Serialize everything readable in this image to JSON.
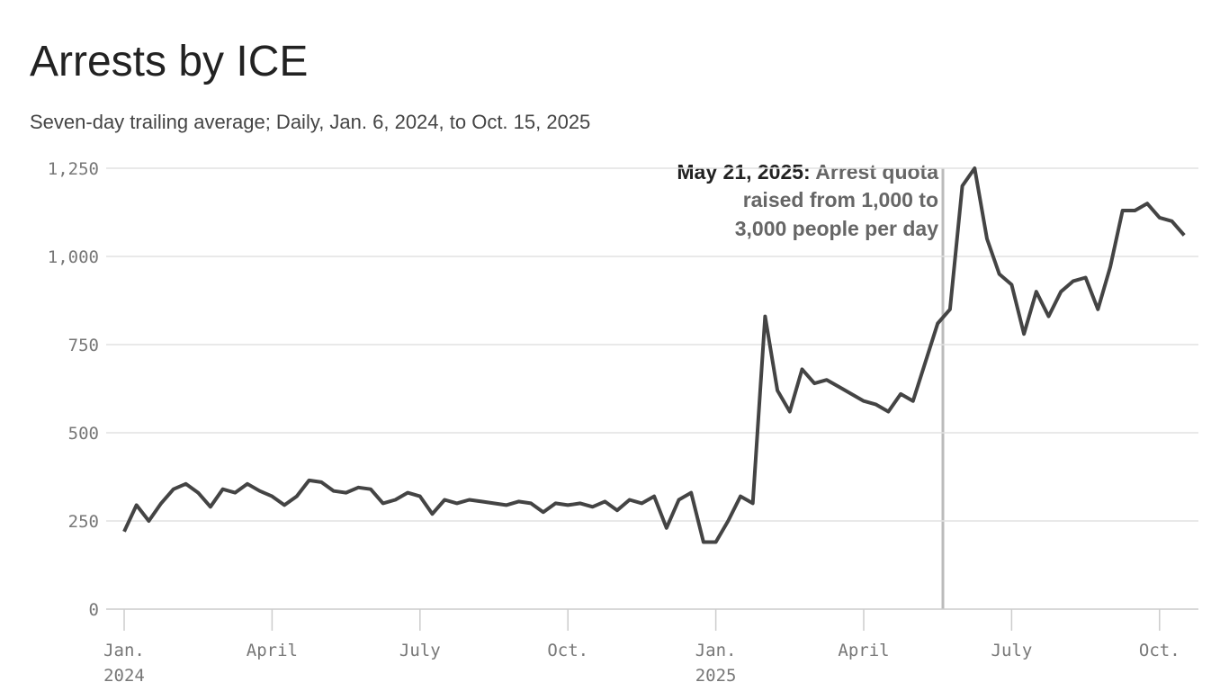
{
  "chart_data": {
    "type": "line",
    "title": "Arrests by ICE",
    "subtitle": "Seven-day trailing average; Daily, Jan. 6, 2024, to Oct. 15, 2025",
    "annotation": {
      "date": "May 21, 2025:",
      "lines": [
        "Arrest quota",
        "raised from 1,000 to",
        "3,000 people per day"
      ]
    },
    "categories": [
      "Jan.\n2024",
      null,
      null,
      null,
      null,
      null,
      null,
      null,
      null,
      null,
      null,
      null,
      "April",
      null,
      null,
      null,
      null,
      null,
      null,
      null,
      null,
      null,
      null,
      null,
      "July",
      null,
      null,
      null,
      null,
      null,
      null,
      null,
      null,
      null,
      null,
      null,
      "Oct.",
      null,
      null,
      null,
      null,
      null,
      null,
      null,
      null,
      null,
      null,
      null,
      "Jan.\n2025",
      null,
      null,
      null,
      null,
      null,
      null,
      null,
      null,
      null,
      null,
      null,
      "April",
      null,
      null,
      null,
      null,
      null,
      null,
      null,
      null,
      null,
      null,
      null,
      "July",
      null,
      null,
      null,
      null,
      null,
      null,
      null,
      null,
      null,
      null,
      null,
      "Oct.",
      null,
      null
    ],
    "series": [
      {
        "name": "Arrests",
        "color": "#444444",
        "values": [
          220,
          295,
          250,
          300,
          340,
          355,
          330,
          290,
          340,
          330,
          355,
          335,
          320,
          295,
          320,
          365,
          360,
          335,
          330,
          345,
          340,
          300,
          310,
          330,
          320,
          270,
          310,
          300,
          310,
          305,
          300,
          295,
          305,
          300,
          275,
          300,
          295,
          300,
          290,
          305,
          280,
          310,
          300,
          320,
          230,
          310,
          330,
          190,
          190,
          250,
          320,
          300,
          830,
          620,
          560,
          680,
          640,
          650,
          630,
          610,
          590,
          580,
          560,
          610,
          590,
          700,
          810,
          850,
          1200,
          1250,
          1050,
          950,
          920,
          780,
          900,
          830,
          900,
          930,
          940,
          850,
          970,
          1130,
          1130,
          1150,
          1110,
          1100,
          1060
        ]
      }
    ],
    "ylim": [
      0,
      1250
    ],
    "yticks": [
      0,
      250,
      500,
      750,
      {
        "value": 1000,
        "label": "1,000"
      },
      {
        "value": 1250,
        "label": "1,250"
      }
    ],
    "grid": true
  }
}
